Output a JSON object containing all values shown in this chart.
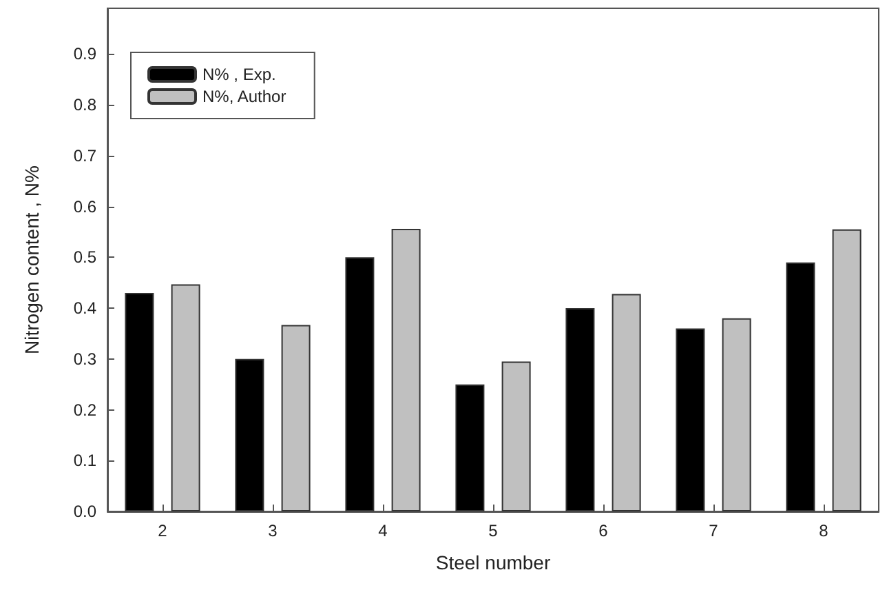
{
  "chart_data": {
    "type": "bar",
    "xlabel": "Steel number",
    "ylabel": "Nitrogen content , N%",
    "categories": [
      "2",
      "3",
      "4",
      "5",
      "6",
      "7",
      "8"
    ],
    "series": [
      {
        "name": "N% , Exp.",
        "color": "#000000",
        "values": [
          0.43,
          0.3,
          0.5,
          0.25,
          0.4,
          0.36,
          0.49
        ]
      },
      {
        "name": "N%, Author",
        "color": "#c0c0c0",
        "values": [
          0.447,
          0.367,
          0.556,
          0.295,
          0.428,
          0.38,
          0.555
        ]
      }
    ],
    "ylim": [
      0,
      0.99
    ],
    "yticks": [
      {
        "value": 0,
        "label": "0.0"
      },
      0.1,
      0.2,
      0.3,
      0.4,
      0.5,
      0.6,
      0.7,
      0.8,
      0.9
    ],
    "grid": false,
    "legend": "top left"
  }
}
